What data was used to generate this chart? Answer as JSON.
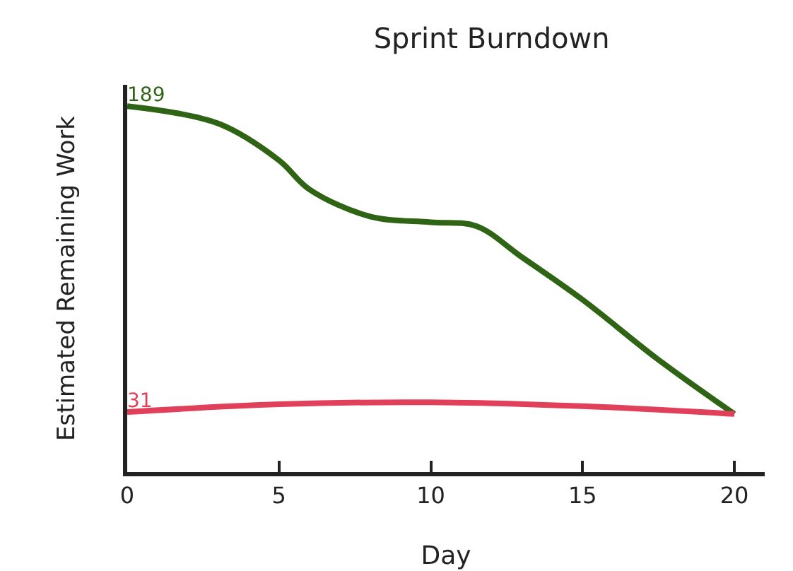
{
  "chart_data": {
    "type": "line",
    "title": "Sprint Burndown",
    "xlabel": "Day",
    "ylabel": "Estimated Remaining Work",
    "xlim": [
      0,
      21
    ],
    "xticks": [
      0,
      5,
      10,
      15,
      20
    ],
    "ylim": [
      0,
      200
    ],
    "tick_labels": "x",
    "line_style": "solid",
    "series": [
      {
        "color": "#2f6414",
        "x": [
          0,
          3,
          5,
          6,
          8,
          10,
          11.5,
          13,
          15,
          17.5,
          20
        ],
        "values": [
          189,
          180,
          161,
          146,
          132,
          129,
          127,
          111,
          89,
          58,
          30
        ],
        "value_labels": [
          "189",
          null,
          null,
          null,
          null,
          null,
          null,
          null,
          null,
          null,
          null
        ]
      },
      {
        "color": "#e0405a",
        "x": [
          0,
          5,
          10,
          15,
          20
        ],
        "values": [
          31,
          35,
          36,
          34,
          30
        ],
        "value_labels": [
          "31",
          null,
          null,
          null,
          null
        ]
      }
    ]
  }
}
